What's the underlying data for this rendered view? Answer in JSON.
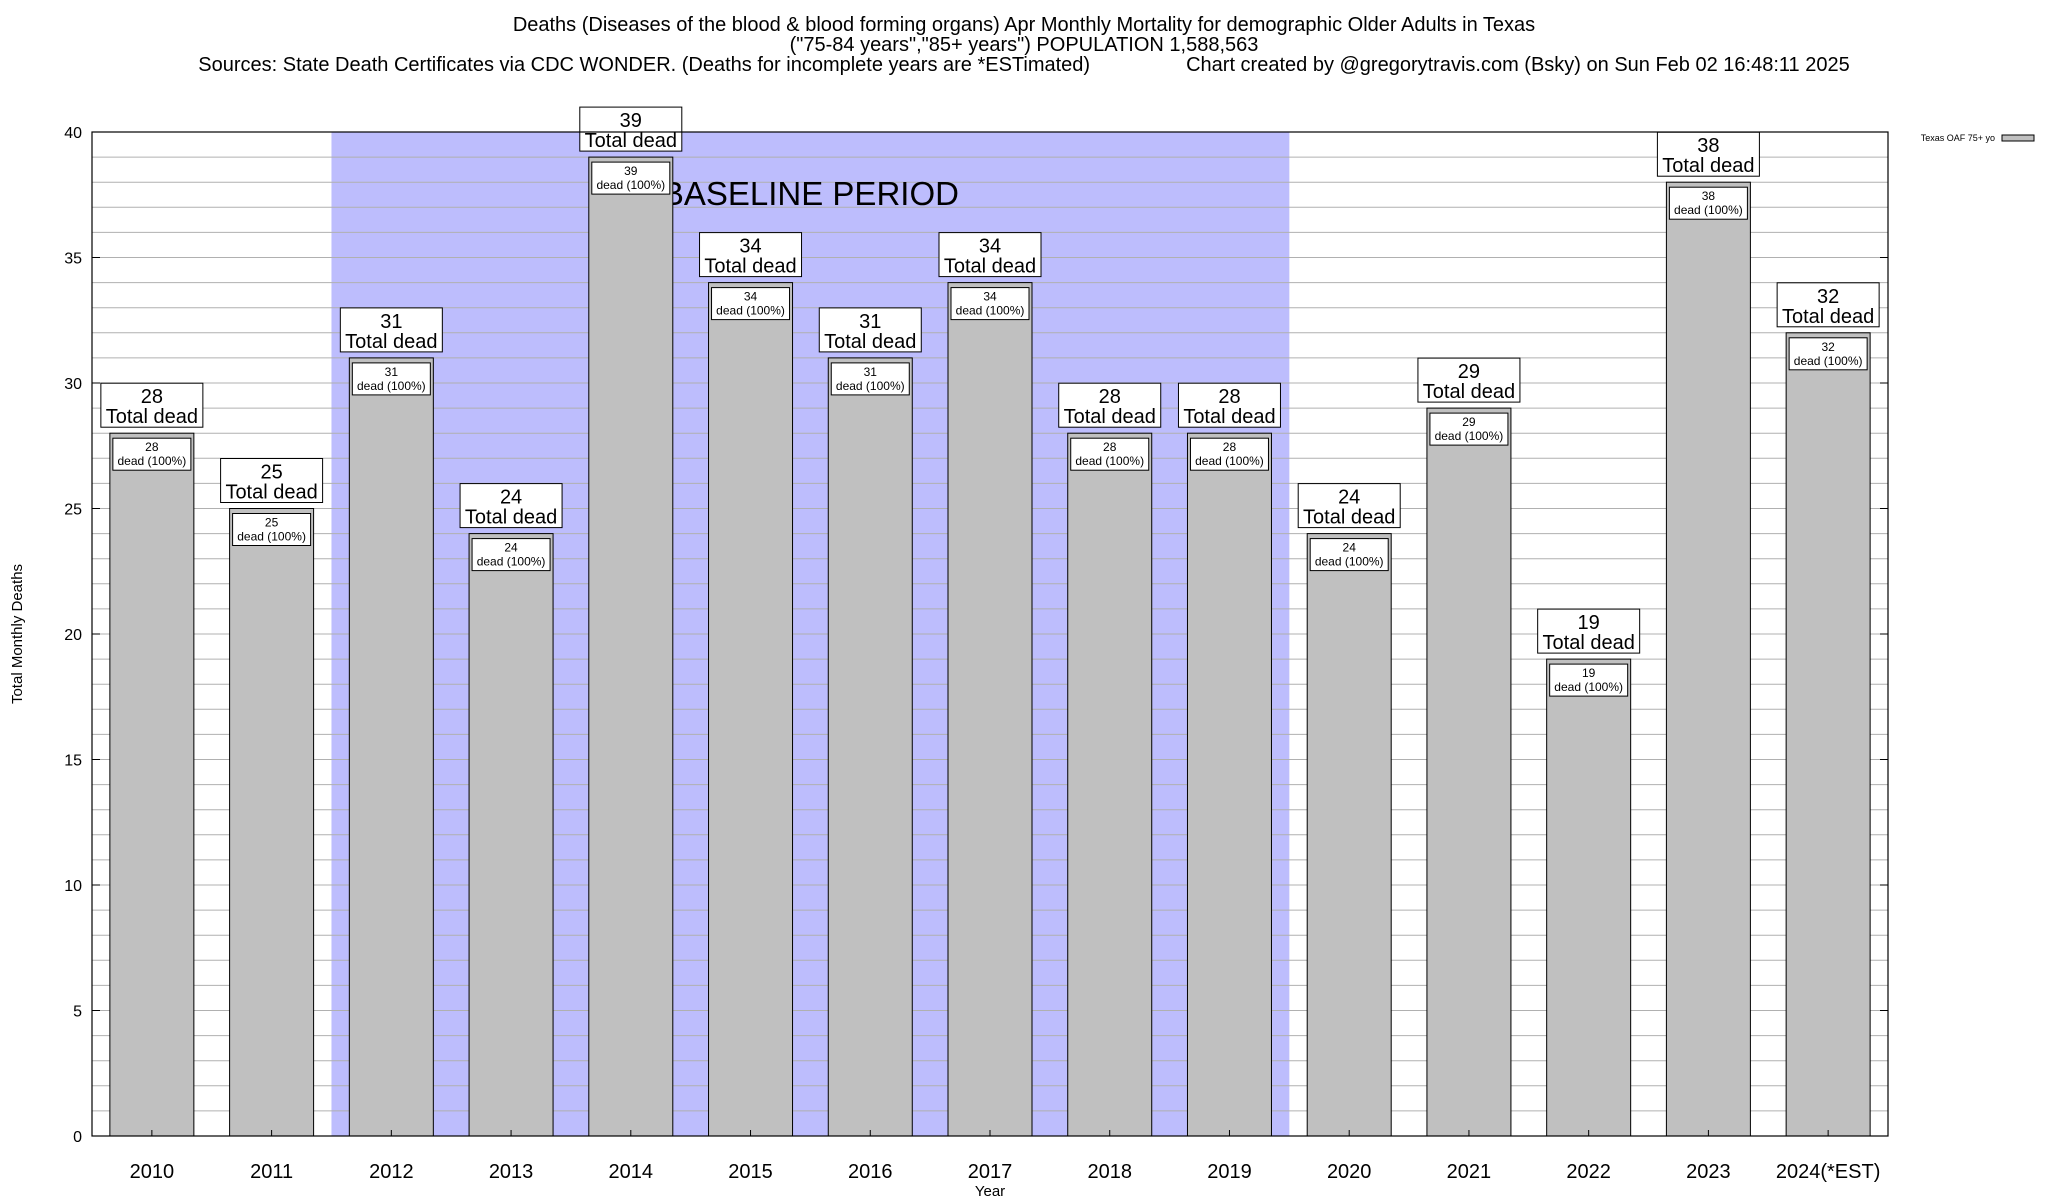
{
  "chart_data": {
    "type": "bar",
    "title": "Deaths (Diseases of the blood & blood forming organs) Apr Monthly Mortality for demographic Older Adults in Texas",
    "subtitle": "(\"75-84 years\",\"85+ years\") POPULATION 1,588,563",
    "sources": "Sources: State Death Certificates via CDC WONDER. (Deaths for incomplete years are *ESTimated)",
    "credit": "Chart created by @gregorytravis.com (Bsky) on Sun Feb 02 16:48:11 2025",
    "xlabel": "Year",
    "ylabel": "Total Monthly Deaths",
    "ylim": [
      0,
      40
    ],
    "yticks": [
      0,
      5,
      10,
      15,
      20,
      25,
      30,
      35,
      40
    ],
    "minor_grid_step": 1,
    "grid": true,
    "legend": {
      "label": "Texas OAF 75+ yo",
      "placement": "top-right"
    },
    "categories": [
      "2010",
      "2011",
      "2012",
      "2013",
      "2014",
      "2015",
      "2016",
      "2017",
      "2018",
      "2019",
      "2020",
      "2021",
      "2022",
      "2023",
      "2024(*EST)"
    ],
    "series": [
      {
        "name": "Texas OAF 75+ yo",
        "values": [
          28,
          25,
          31,
          24,
          39,
          34,
          31,
          34,
          28,
          28,
          24,
          29,
          19,
          38,
          32
        ]
      }
    ],
    "total_label_suffix": "Total dead",
    "inner_label_suffix": "dead (100%)",
    "baseline_period": {
      "label": "BASELINE PERIOD",
      "from": "2012",
      "to": "2019"
    },
    "colors": {
      "bar": "#c0c0c0",
      "baseline": "#bdbdfd",
      "grid": "#b0b0b0"
    }
  }
}
